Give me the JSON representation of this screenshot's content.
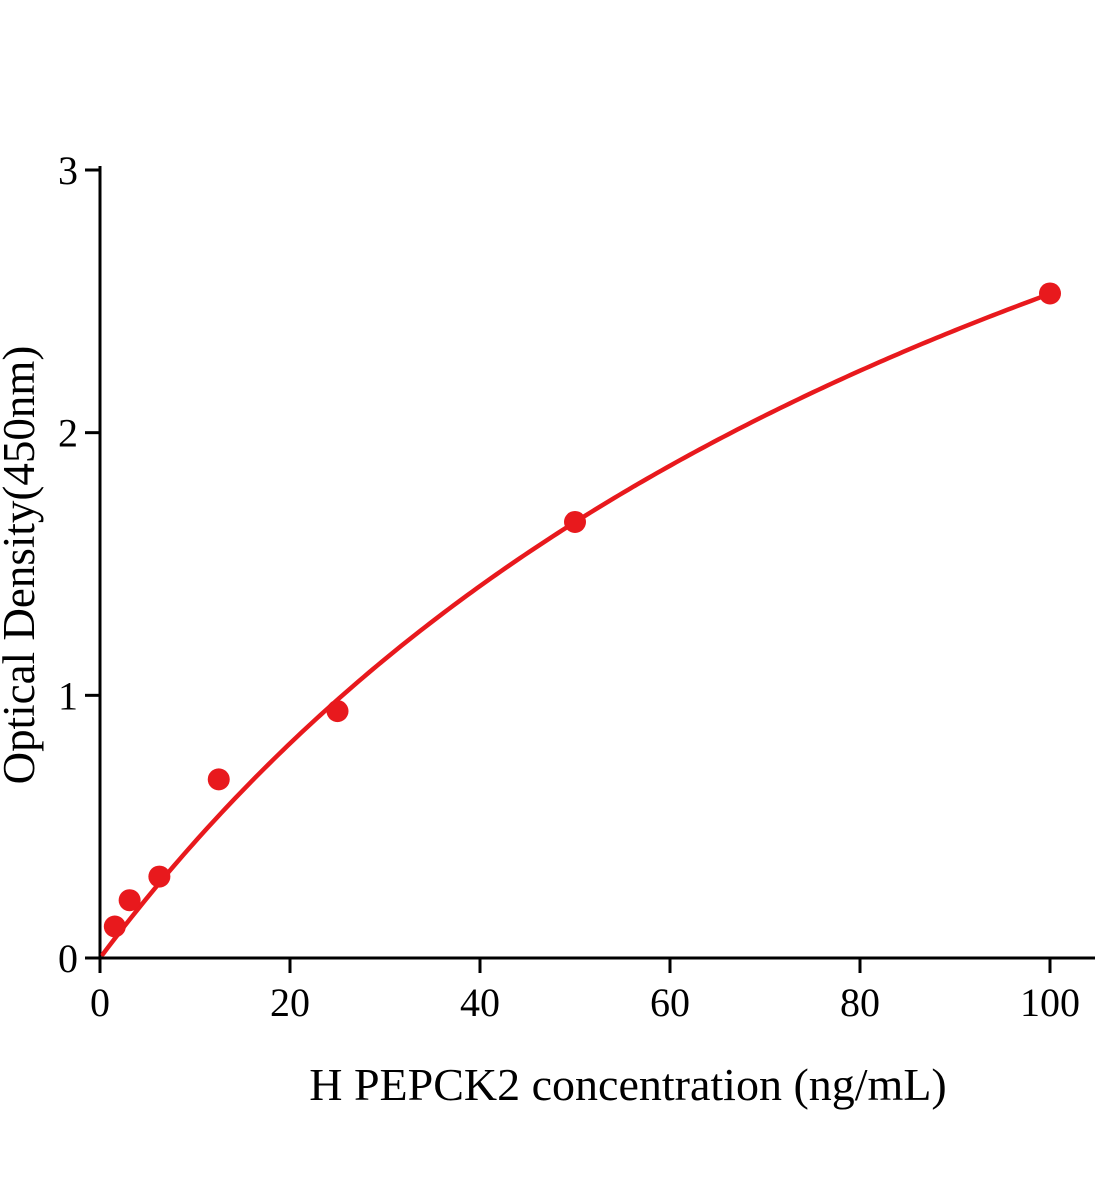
{
  "chart_data": {
    "type": "scatter",
    "title": "",
    "xlabel": "H PEPCK2 concentration (ng/mL)",
    "ylabel": "Optical Density(450nm)",
    "x": [
      1.56,
      3.12,
      6.25,
      12.5,
      25,
      50,
      100
    ],
    "y": [
      0.12,
      0.22,
      0.31,
      0.68,
      0.94,
      1.66,
      2.53
    ],
    "xlim": [
      0,
      104.7
    ],
    "ylim": [
      0,
      3
    ],
    "xticks": [
      0,
      20,
      40,
      60,
      80,
      100
    ],
    "yticks": [
      0,
      1,
      2,
      3
    ],
    "grid": false,
    "legend": false,
    "point_color": "#e8191d",
    "curve_color": "#e8191d",
    "axis_color": "#000000",
    "fit": {
      "type": "saturation",
      "vmax": 5.31,
      "k": 110
    }
  }
}
